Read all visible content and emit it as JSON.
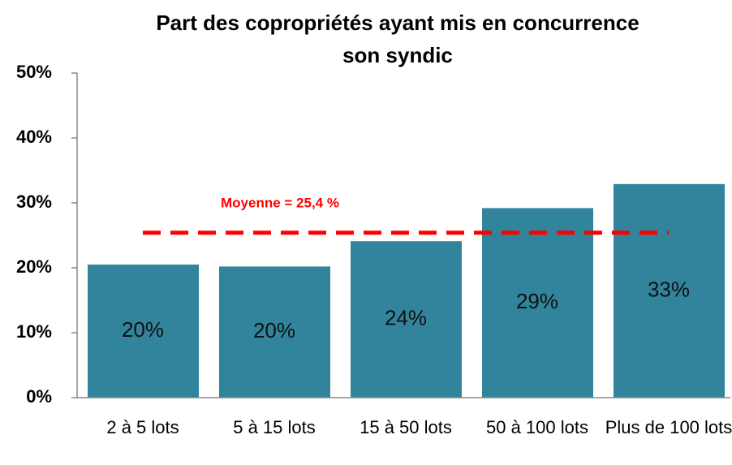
{
  "chart_data": {
    "type": "bar",
    "title": [
      "Part des copropriétés ayant mis en concurrence",
      "son syndic"
    ],
    "categories": [
      "2 à 5 lots",
      "5 à 15 lots",
      "15 à 50 lots",
      "50 à 100 lots",
      "Plus de 100 lots"
    ],
    "values": [
      20.5,
      20.2,
      24.1,
      29.2,
      32.9
    ],
    "value_labels": [
      "20%",
      "20%",
      "24%",
      "29%",
      "33%"
    ],
    "color": "#31849b",
    "ylim": [
      0,
      50
    ],
    "yticks": [
      {
        "value": 0,
        "label": "0%"
      },
      {
        "value": 10,
        "label": "10%"
      },
      {
        "value": 20,
        "label": "20%"
      },
      {
        "value": 30,
        "label": "30%"
      },
      {
        "value": 40,
        "label": "40%"
      },
      {
        "value": 50,
        "label": "50%"
      }
    ],
    "mean": {
      "value": 25.4,
      "label": "Moyenne = 25,4 %",
      "color": "#ff0000"
    }
  }
}
